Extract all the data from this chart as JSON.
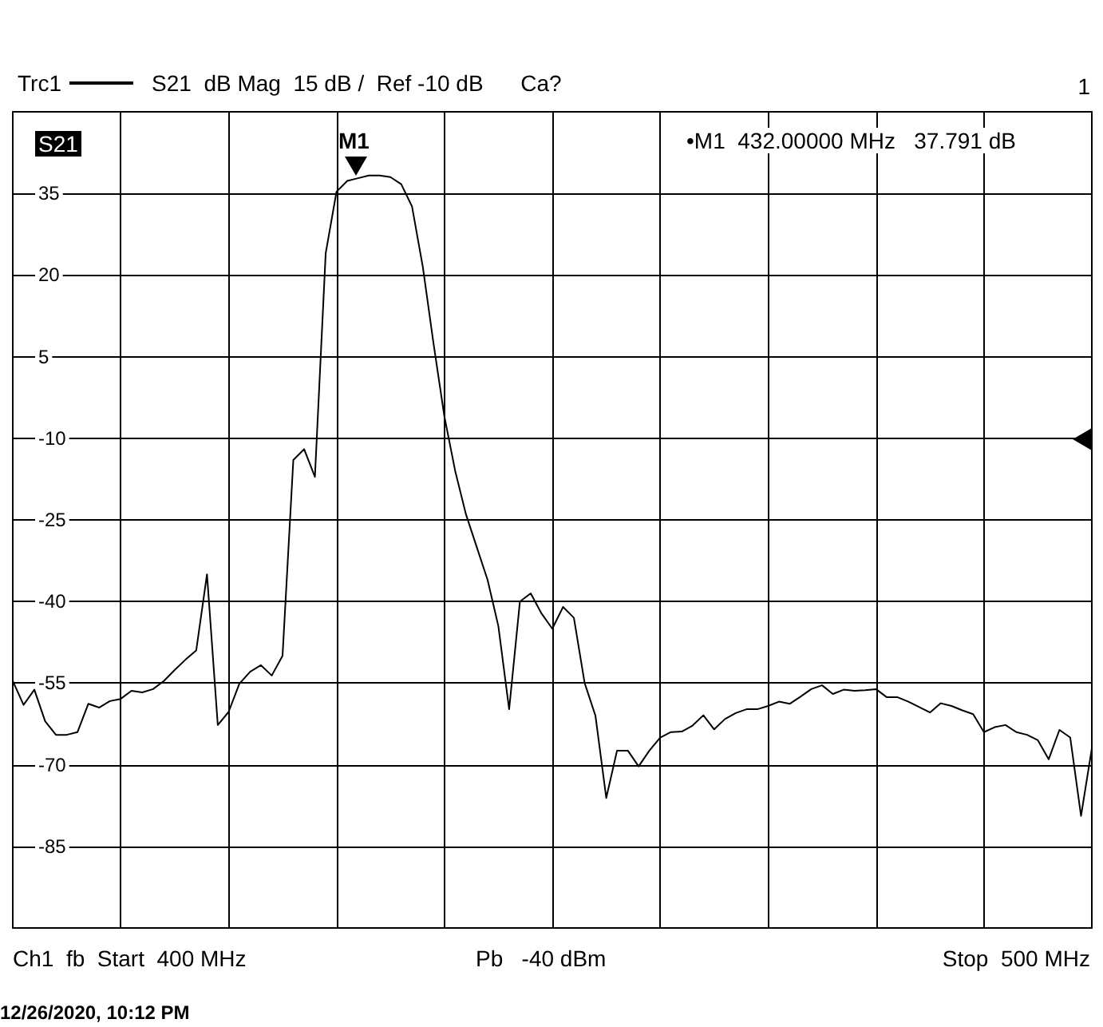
{
  "chart_data": {
    "type": "line",
    "title": "S21  dB Mag  15 dB /  Ref -10 dB      Ca?",
    "categories": [
      null,
      null,
      null,
      null,
      null,
      null,
      null,
      null,
      null,
      null,
      null,
      null,
      null,
      null,
      null,
      null,
      null,
      null,
      null,
      null,
      null,
      null,
      null,
      null,
      null,
      null,
      null,
      null,
      null,
      null,
      null,
      null,
      null,
      null,
      null,
      null,
      null,
      null,
      null,
      null,
      null,
      null,
      null,
      null,
      null,
      null,
      null,
      null,
      null,
      null,
      null,
      null,
      null,
      null,
      null,
      null,
      null,
      null,
      null,
      null,
      null,
      null,
      null,
      null,
      null,
      null,
      null,
      null,
      null,
      null,
      null,
      null,
      null,
      null,
      null,
      null,
      null,
      null,
      null,
      null,
      null,
      null,
      null,
      null,
      null,
      null,
      null,
      null,
      null,
      null,
      null,
      null,
      null,
      null,
      null,
      null,
      null,
      null,
      null,
      null,
      null
    ],
    "series": [
      {
        "name": "Trc1",
        "color": "#000000",
        "values": [
          -54.6,
          -59,
          -56.2,
          -62,
          -64.5,
          -64.5,
          -64,
          -58.8,
          -59.5,
          -58.3,
          -57.9,
          -56.4,
          -56.7,
          -56.1,
          -54.6,
          -52.6,
          -50.7,
          -49,
          -35,
          -62.7,
          -60.3,
          -55.1,
          -52.9,
          -51.7,
          -53.6,
          -50,
          -14,
          -12,
          -17.1,
          24,
          35.3,
          37.3,
          37.8,
          38.3,
          38.3,
          38,
          36.7,
          32.6,
          21.5,
          7.3,
          -6,
          -16,
          -24,
          -30,
          -36,
          -44.5,
          -59.8,
          -40,
          -38.5,
          -42.2,
          -45,
          -41,
          -43,
          -55,
          -61,
          -76.1,
          -67.4,
          -67.4,
          -70.3,
          -67.4,
          -65,
          -64,
          -63.9,
          -62.8,
          -60.9,
          -63.5,
          -61.6,
          -60.5,
          -59.8,
          -59.8,
          -59.2,
          -58.4,
          -58.8,
          -57.5,
          -56.1,
          -55.4,
          -57,
          -56.2,
          -56.4,
          -56.3,
          -56.1,
          -57.6,
          -57.6,
          -58.4,
          -59.4,
          -60.4,
          -58.7,
          -59.2,
          -60,
          -60.7,
          -64,
          -63.1,
          -62.7,
          -64,
          -64.5,
          -65.5,
          -69,
          -63.6,
          -65,
          -79.4,
          -67
        ]
      }
    ],
    "ylim": [
      -100,
      50
    ],
    "yticks": [
      -85,
      -70,
      -55,
      -40,
      -25,
      -10,
      5,
      20,
      35
    ],
    "tick_labels": "y",
    "grid": true,
    "legend": "top left",
    "line_style": "solid",
    "annotations": [
      "S21",
      "•M1  432.00000 MHz   37.791 dB",
      "1",
      "Ch1  fb  Start  400 MHz",
      "Pb   -40 dBm",
      "Stop  500 MHz",
      "12/26/2020, 10:12 PM",
      "M1"
    ]
  }
}
